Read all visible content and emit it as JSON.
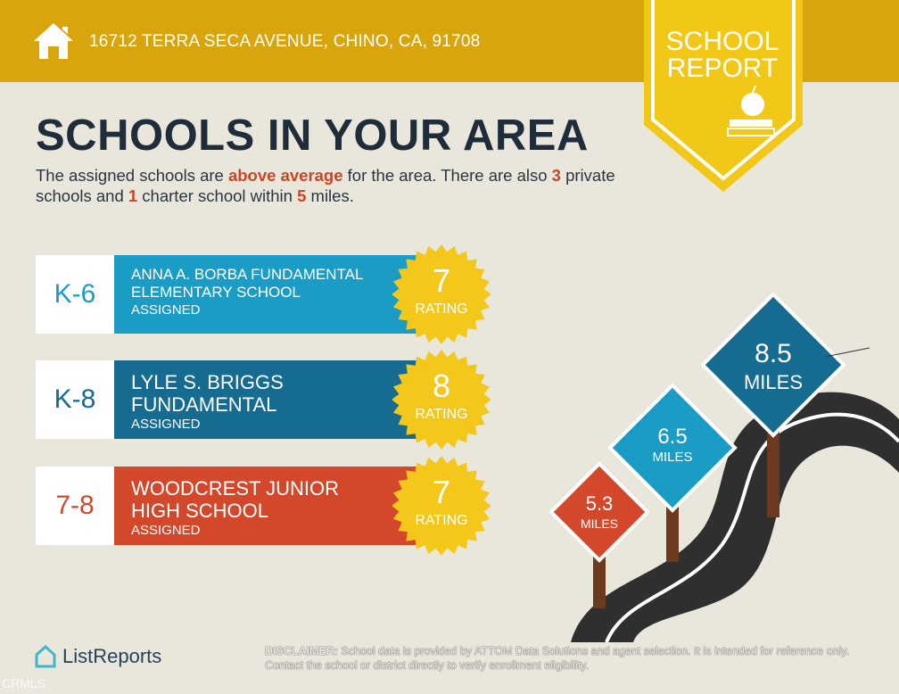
{
  "header": {
    "address": "16712 TERRA SECA AVENUE, CHINO, CA, 91708",
    "badge_line1": "SCHOOL",
    "badge_line2": "REPORT"
  },
  "title": "SCHOOLS IN YOUR AREA",
  "summary": {
    "p1": "The assigned schools are ",
    "above": "above average",
    "p2": " for the area. There are also ",
    "private": "3",
    "p3": " private schools and ",
    "charter": "1",
    "p4": " charter school within ",
    "miles": "5",
    "p5": " miles."
  },
  "schools": [
    {
      "grade": "K-6",
      "name": "ANNA A. BORBA FUNDAMENTAL ELEMENTARY SCHOOL",
      "status": "ASSIGNED",
      "rating": "7",
      "rating_label": "RATING",
      "color": "#1a9cc4"
    },
    {
      "grade": "K-8",
      "name": "LYLE S. BRIGGS FUNDAMENTAL",
      "status": "ASSIGNED",
      "rating": "8",
      "rating_label": "RATING",
      "color": "#156b90"
    },
    {
      "grade": "7-8",
      "name": "WOODCREST JUNIOR HIGH SCHOOL",
      "status": "ASSIGNED",
      "rating": "7",
      "rating_label": "RATING",
      "color": "#d3482a"
    }
  ],
  "signs": [
    {
      "value": "5.3",
      "unit": "MILES",
      "color": "#d3482a"
    },
    {
      "value": "6.5",
      "unit": "MILES",
      "color": "#1a9cc4"
    },
    {
      "value": "8.5",
      "unit": "MILES",
      "color": "#156b90"
    }
  ],
  "footer": {
    "brand": "ListReports",
    "disclaimer_label": "DISCLAIMER:",
    "disclaimer": " School data is provided by ATTOM Data Solutions and agent selection. It is intended for reference only. Contact the school or district directly to verify enrollment eligibility.",
    "watermark": "CRMLS"
  }
}
